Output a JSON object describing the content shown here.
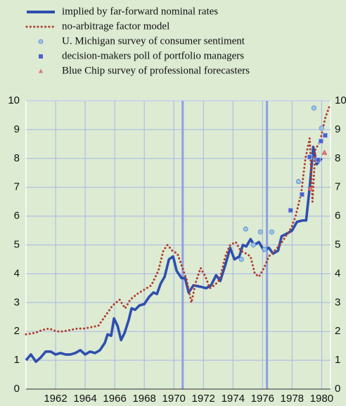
{
  "chart_data": {
    "type": "line",
    "xlim": [
      1960,
      1980.6
    ],
    "ylim": [
      0,
      10
    ],
    "xticks": [
      1962,
      1964,
      1966,
      1968,
      1970,
      1972,
      1974,
      1976,
      1978,
      1980
    ],
    "yticks": [
      0,
      1,
      2,
      3,
      4,
      5,
      6,
      7,
      8,
      9,
      10
    ],
    "y_ticks_both_sides": true,
    "grid": true,
    "grid_color": "#aab6e6",
    "vlines": [
      1970.6,
      1976.3
    ],
    "vline_color": "#8f9fe0",
    "legend": "top-left",
    "series": [
      {
        "name": "implied by far-forward nominal rates",
        "style": "line",
        "color": "#2e4fae",
        "x": [
          1960,
          1960.33,
          1960.67,
          1961,
          1961.33,
          1961.67,
          1962,
          1962.33,
          1962.67,
          1963,
          1963.33,
          1963.67,
          1964,
          1964.33,
          1964.67,
          1965,
          1965.33,
          1965.52,
          1965.76,
          1965.95,
          1966.19,
          1966.43,
          1966.67,
          1966.95,
          1967.14,
          1967.38,
          1967.67,
          1968,
          1968.33,
          1968.62,
          1968.86,
          1969.1,
          1969.38,
          1969.67,
          1969.95,
          1970.19,
          1970.52,
          1970.76,
          1971,
          1971.33,
          1971.81,
          1972.19,
          1972.52,
          1972.86,
          1973.14,
          1973.48,
          1973.81,
          1974.1,
          1974.43,
          1974.67,
          1974.9,
          1975.19,
          1975.43,
          1975.76,
          1976.1,
          1976.43,
          1976.71,
          1977.05,
          1977.29,
          1977.67,
          1978,
          1978.33,
          1978.71,
          1978.95,
          1979.19,
          1979.43,
          1979.67,
          1980
        ],
        "values": [
          1.0,
          1.2,
          0.95,
          1.1,
          1.3,
          1.3,
          1.2,
          1.25,
          1.2,
          1.2,
          1.25,
          1.35,
          1.2,
          1.3,
          1.25,
          1.35,
          1.6,
          1.9,
          1.85,
          2.45,
          2.2,
          1.7,
          1.95,
          2.4,
          2.8,
          2.75,
          2.9,
          2.95,
          3.2,
          3.35,
          3.3,
          3.65,
          3.9,
          4.5,
          4.6,
          4.1,
          3.85,
          3.85,
          3.35,
          3.6,
          3.55,
          3.5,
          3.6,
          3.95,
          3.75,
          4.3,
          4.9,
          4.5,
          4.6,
          5.0,
          4.95,
          5.2,
          5.0,
          5.1,
          4.8,
          4.9,
          4.7,
          4.8,
          5.3,
          5.4,
          5.5,
          5.8,
          5.85,
          5.85,
          7.0,
          8.4,
          7.8,
          8.0
        ]
      },
      {
        "name": "no-arbitrage factor model",
        "style": "dotted",
        "color": "#b23a2c",
        "x": [
          1960,
          1960.62,
          1961.1,
          1961.57,
          1962.05,
          1962.52,
          1963,
          1963.48,
          1963.95,
          1964.43,
          1964.9,
          1965.38,
          1965.86,
          1966.33,
          1966.71,
          1967.05,
          1967.52,
          1968,
          1968.48,
          1968.95,
          1969.29,
          1969.57,
          1969.9,
          1970.24,
          1970.52,
          1970.86,
          1971.19,
          1971.48,
          1971.81,
          1972.14,
          1972.43,
          1972.76,
          1973.1,
          1973.48,
          1973.81,
          1974.19,
          1974.52,
          1974.9,
          1975.19,
          1975.48,
          1975.76,
          1976.1,
          1976.43,
          1976.81,
          1977.19,
          1977.57,
          1977.95,
          1978.24,
          1978.62,
          1978.9,
          1979.19,
          1979.38,
          1979.57,
          1979.9,
          1980.24,
          1980.52
        ],
        "values": [
          1.9,
          1.95,
          2.05,
          2.1,
          2.0,
          2.0,
          2.05,
          2.1,
          2.1,
          2.15,
          2.2,
          2.55,
          2.9,
          3.1,
          2.8,
          3.1,
          3.3,
          3.45,
          3.6,
          4.1,
          4.8,
          5.0,
          4.8,
          4.7,
          4.3,
          3.8,
          3.0,
          3.7,
          4.2,
          3.9,
          3.5,
          3.6,
          3.8,
          4.6,
          5.0,
          5.1,
          4.8,
          4.7,
          4.6,
          4.0,
          3.9,
          4.2,
          4.6,
          4.8,
          5.0,
          5.3,
          5.6,
          6.0,
          6.8,
          8.0,
          8.7,
          6.5,
          8.3,
          8.6,
          9.4,
          9.8
        ]
      },
      {
        "name": "U. Michigan survey of consumer sentiment",
        "style": "scatter",
        "marker": "circle",
        "color": "#9cc2e8",
        "x": [
          1974.57,
          1974.86,
          1975.38,
          1975.86,
          1976.14,
          1976.62,
          1978.43,
          1979.48,
          1980.0
        ],
        "values": [
          4.5,
          5.55,
          5.0,
          5.45,
          4.85,
          5.45,
          7.2,
          9.75,
          9.05
        ]
      },
      {
        "name": "decision-makers poll of portfolio managers",
        "style": "scatter",
        "marker": "square",
        "color": "#4a62cc",
        "x": [
          1977.9,
          1978.67,
          1979.19,
          1979.76,
          1979.95,
          1980.24
        ],
        "values": [
          6.2,
          6.75,
          8.05,
          7.95,
          8.6,
          8.8
        ]
      },
      {
        "name": "Blue Chip survey of professional forecasters",
        "style": "scatter",
        "marker": "triangle",
        "color": "#e07a7a",
        "x": [
          1979.24,
          1980.19
        ],
        "values": [
          6.95,
          8.2
        ]
      }
    ]
  }
}
